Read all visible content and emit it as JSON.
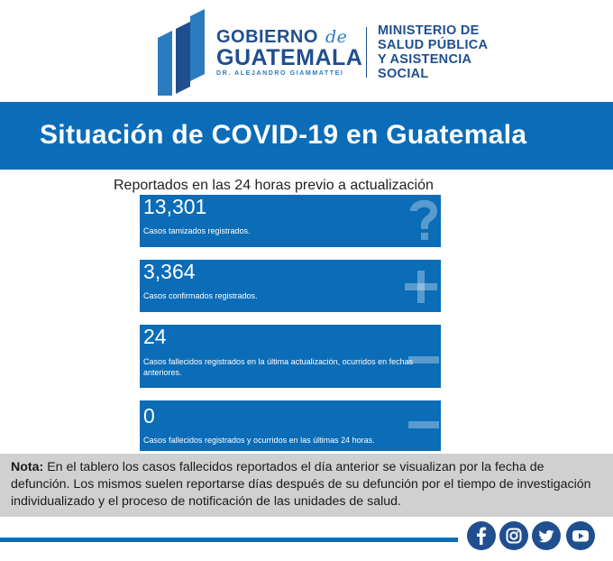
{
  "header": {
    "gobierno": "GOBIERNO",
    "de": "de",
    "guatemala": "GUATEMALA",
    "presidente": "DR. ALEJANDRO GIAMMATTEI",
    "ministerio_lines": [
      "MINISTERIO DE",
      "SALUD PÚBLICA",
      "Y ASISTENCIA",
      "SOCIAL"
    ]
  },
  "title": "Situación de COVID-19 en Guatemala",
  "subtitle": "Reportados en las 24 horas previo a actualización",
  "cards": [
    {
      "value": "13,301",
      "description": "Casos tamizados registrados.",
      "icon": "question-icon"
    },
    {
      "value": "3,364",
      "description": "Casos confirmados registrados.",
      "icon": "plus-icon"
    },
    {
      "value": "24",
      "description": "Casos fallecidos registrados en la última actualización, ocurridos en fechas anteriores.",
      "icon": "minus-icon"
    },
    {
      "value": "0",
      "description": "Casos fallecidos registrados y ocurridos en las últimas 24 horas.",
      "icon": "minus-icon"
    }
  ],
  "nota": {
    "label": "Nota:",
    "text": " En el tablero los casos fallecidos reportados el día anterior se visualizan por la fecha de defunción. Los mismos suelen reportarse días después de su defunción por el tiempo de investigación individualizado y el proceso de notificación de las unidades de salud."
  },
  "social": [
    "facebook-icon",
    "instagram-icon",
    "twitter-icon",
    "youtube-icon"
  ],
  "colors": {
    "brand_blue": "#0b6cb7",
    "navy": "#1f4f8f",
    "note_bg": "#d0d0d0"
  }
}
